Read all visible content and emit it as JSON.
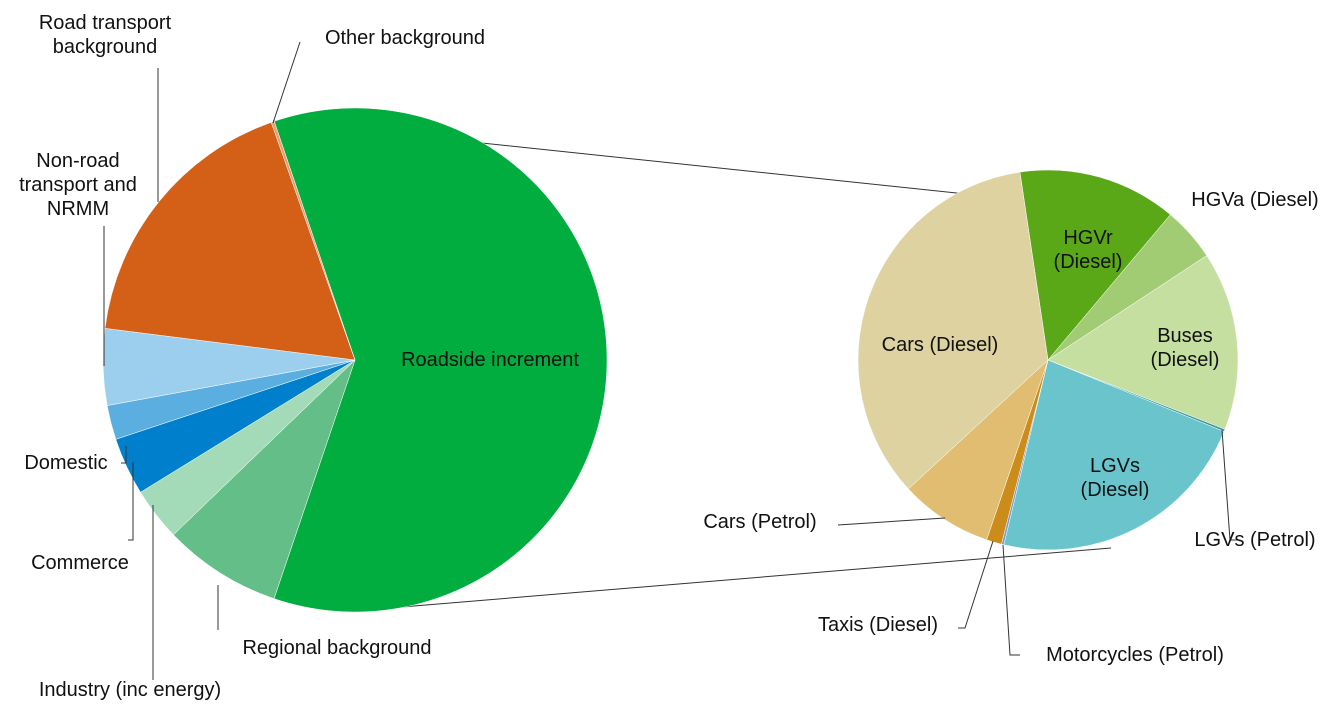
{
  "chart_data": [
    {
      "type": "pie",
      "categories": [
        "Roadside increment",
        "Regional background",
        "Industry (inc energy)",
        "Commerce",
        "Domestic",
        "Non-road transport and NRMM",
        "Road transport background",
        "Other background"
      ],
      "values": [
        60.4,
        7.6,
        3.4,
        3.7,
        2.2,
        4.9,
        17.6,
        0.2
      ],
      "colors": [
        "#00ad3e",
        "#63be88",
        "#a3dbb8",
        "#0080cc",
        "#5aaee0",
        "#9ccfed",
        "#d45f17",
        "#e8a070"
      ]
    },
    {
      "type": "pie",
      "categories": [
        "HGVr (Diesel)",
        "HGVa (Diesel)",
        "Buses (Diesel)",
        "LGVs (Petrol)",
        "LGVs (Diesel)",
        "Motorcycles (Petrol)",
        "Taxis (Diesel)",
        "Cars (Petrol)",
        "Cars (Diesel)"
      ],
      "values": [
        13.5,
        4.6,
        15.2,
        0.2,
        22.6,
        0.2,
        1.3,
        7.9,
        34.5
      ],
      "colors": [
        "#5aa818",
        "#a2cc74",
        "#c5dfa0",
        "#3a9aa2",
        "#6ac4cc",
        "#7a9ad0",
        "#cc8c1a",
        "#e1bd72",
        "#ded2a0"
      ]
    }
  ]
}
